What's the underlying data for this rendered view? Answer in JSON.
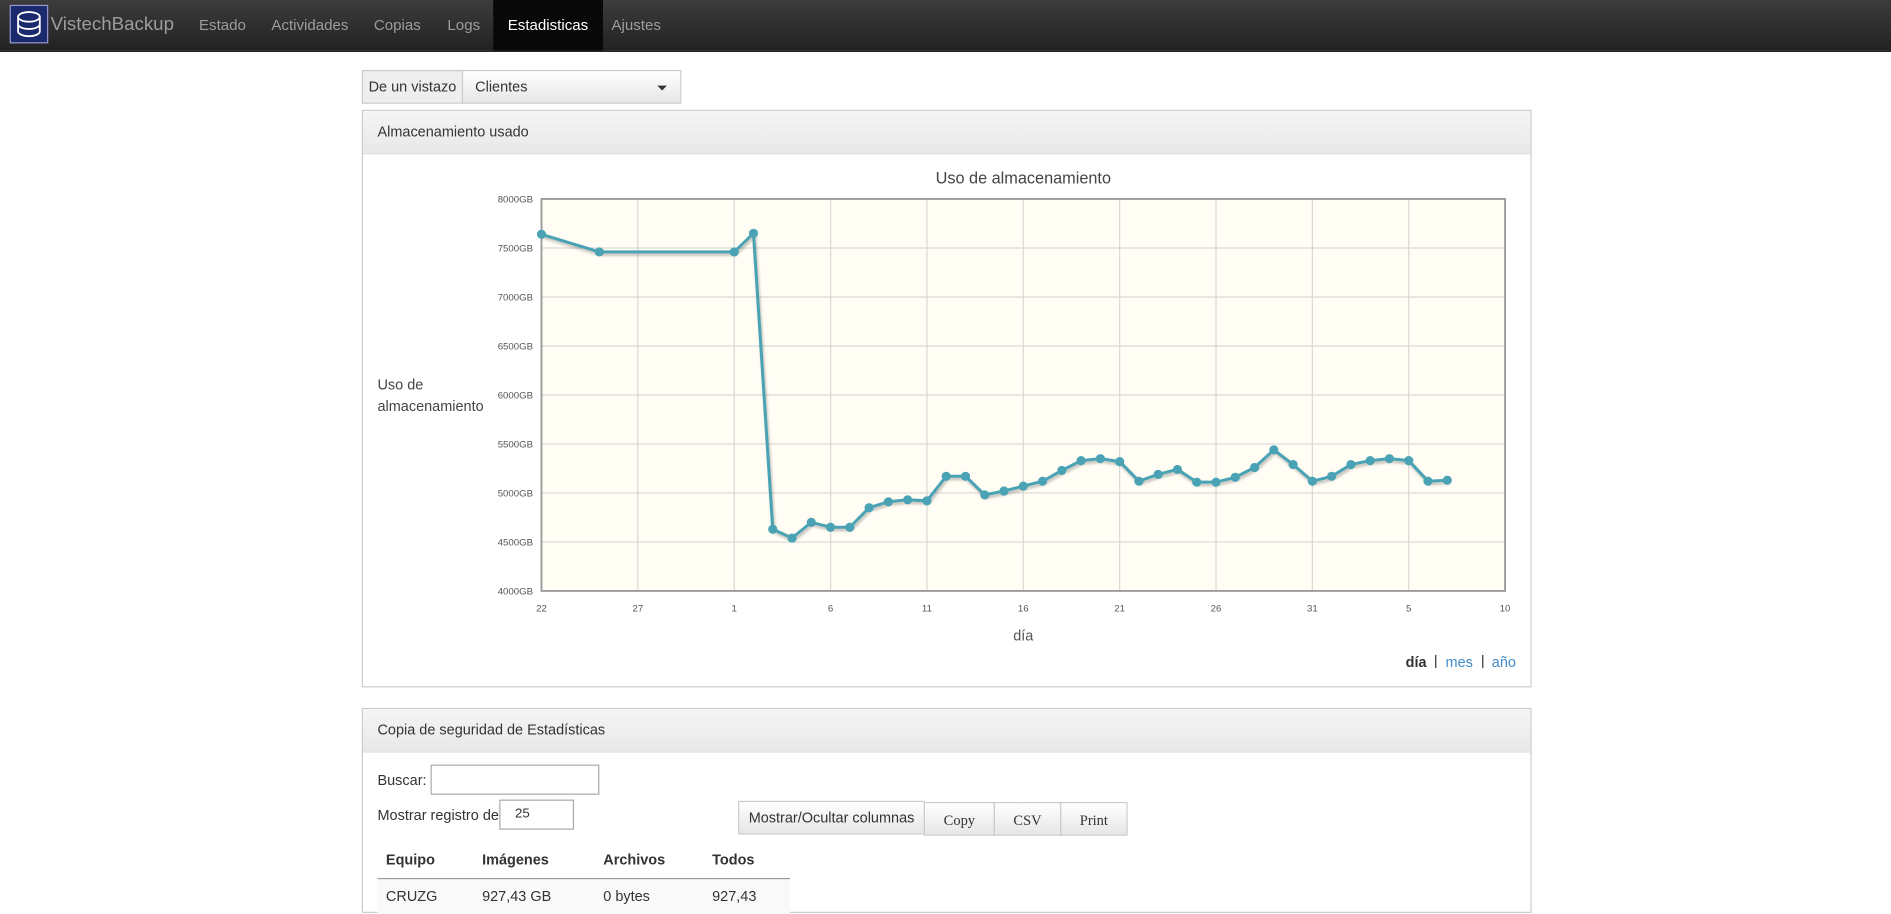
{
  "navbar": {
    "brand": "VistechBackup",
    "items": [
      "Estado",
      "Actividades",
      "Copias",
      "Logs",
      "Estadisticas",
      "Ajustes"
    ]
  },
  "toolbar": {
    "label": "De un vistazo",
    "select": "Clientes"
  },
  "storage_panel": {
    "title": "Almacenamiento usado",
    "periods": [
      "día",
      "mes",
      "año"
    ]
  },
  "chart_data": {
    "type": "line",
    "title": "Uso de almacenamiento",
    "x_label": "día",
    "y_label": "Uso de almacenamiento",
    "color": "#4aa3b5",
    "x": [
      0,
      3,
      10,
      11,
      12,
      13,
      14,
      15,
      16,
      17,
      18,
      19,
      20,
      21,
      22,
      23,
      24,
      25,
      26,
      27,
      28,
      29,
      30,
      31,
      32,
      33,
      34,
      35,
      36,
      37,
      38,
      39,
      40,
      41,
      42,
      43,
      44,
      45,
      46,
      47
    ],
    "values": [
      7640,
      7460,
      7460,
      7650,
      4630,
      4540,
      4700,
      4650,
      4650,
      4850,
      4910,
      4930,
      4920,
      5170,
      5170,
      4980,
      5020,
      5070,
      5120,
      5230,
      5330,
      5350,
      5320,
      5120,
      5190,
      5240,
      5110,
      5110,
      5160,
      5260,
      5440,
      5290,
      5120,
      5170,
      5290,
      5330,
      5350,
      5330,
      5120,
      5130
    ],
    "xlim": [
      0,
      50
    ],
    "xticks": [
      {
        "value": 0,
        "label": "22"
      },
      {
        "value": 5,
        "label": "27"
      },
      {
        "value": 10,
        "label": "1"
      },
      {
        "value": 15,
        "label": "6"
      },
      {
        "value": 20,
        "label": "11"
      },
      {
        "value": 25,
        "label": "16"
      },
      {
        "value": 30,
        "label": "21"
      },
      {
        "value": 35,
        "label": "26"
      },
      {
        "value": 40,
        "label": "31"
      },
      {
        "value": 45,
        "label": "5"
      },
      {
        "value": 50,
        "label": "10"
      }
    ],
    "ylim": [
      4000,
      8000
    ],
    "yticks": [
      {
        "value": 4000,
        "label": "4000GB"
      },
      {
        "value": 4500,
        "label": "4500GB"
      },
      {
        "value": 5000,
        "label": "5000GB"
      },
      {
        "value": 5500,
        "label": "5500GB"
      },
      {
        "value": 6000,
        "label": "6000GB"
      },
      {
        "value": 6500,
        "label": "6500GB"
      },
      {
        "value": 7000,
        "label": "7000GB"
      },
      {
        "value": 7500,
        "label": "7500GB"
      },
      {
        "value": 8000,
        "label": "8000GB"
      }
    ],
    "grid": true
  },
  "stats_panel": {
    "title": "Copia de seguridad de Estadísticas",
    "search_label": "Buscar:",
    "length_label": "Mostrar registro de",
    "length_value": "25",
    "buttons": [
      "Mostrar/Ocultar columnas",
      "Copy",
      "CSV",
      "Print"
    ],
    "table": {
      "columns": [
        "Equipo",
        "Imágenes",
        "Archivos",
        "Todos"
      ],
      "rows": [
        [
          "CRUZG",
          "927,43 GB",
          "0 bytes",
          "927,43"
        ]
      ]
    }
  }
}
